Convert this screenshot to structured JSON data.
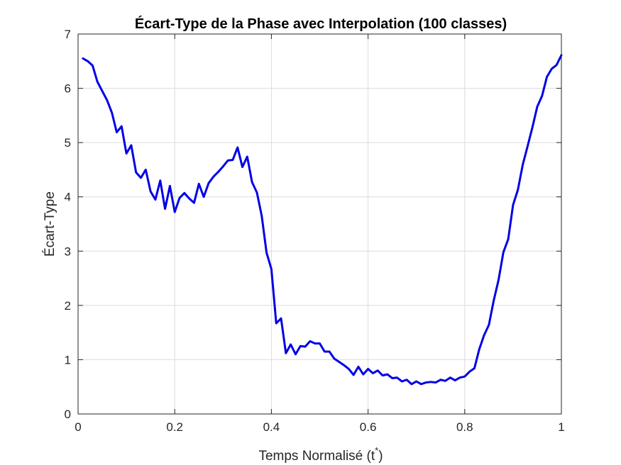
{
  "chart_data": {
    "type": "line",
    "title": "Écart-Type de la Phase avec Interpolation (100 classes)",
    "xlabel_main": "Temps Normalisé (t",
    "xlabel_sup": "*",
    "xlabel_end": ")",
    "ylabel": "Écart-Type",
    "xlim": [
      0,
      1
    ],
    "ylim": [
      0,
      7
    ],
    "xticks": [
      0,
      0.2,
      0.4,
      0.6,
      0.8,
      1
    ],
    "xtick_labels": [
      "0",
      "0.2",
      "0.4",
      "0.6",
      "0.8",
      "1"
    ],
    "yticks": [
      0,
      1,
      2,
      3,
      4,
      5,
      6,
      7
    ],
    "ytick_labels": [
      "0",
      "1",
      "2",
      "3",
      "4",
      "5",
      "6",
      "7"
    ],
    "grid": true,
    "line_color": "#0000e6",
    "series": [
      {
        "x": [
          0.01,
          0.02,
          0.03,
          0.04,
          0.05,
          0.06,
          0.07,
          0.08,
          0.09,
          0.1,
          0.11,
          0.12,
          0.13,
          0.14,
          0.15,
          0.16,
          0.17,
          0.18,
          0.19,
          0.2,
          0.21,
          0.22,
          0.23,
          0.24,
          0.25,
          0.26,
          0.27,
          0.28,
          0.29,
          0.3,
          0.31,
          0.32,
          0.33,
          0.34,
          0.35,
          0.36,
          0.37,
          0.38,
          0.39,
          0.4,
          0.41,
          0.42,
          0.43,
          0.44,
          0.45,
          0.46,
          0.47,
          0.48,
          0.49,
          0.5,
          0.51,
          0.52,
          0.53,
          0.54,
          0.55,
          0.56,
          0.57,
          0.58,
          0.59,
          0.6,
          0.61,
          0.62,
          0.63,
          0.64,
          0.65,
          0.66,
          0.67,
          0.68,
          0.69,
          0.7,
          0.71,
          0.72,
          0.73,
          0.74,
          0.75,
          0.76,
          0.77,
          0.78,
          0.79,
          0.8,
          0.81,
          0.82,
          0.83,
          0.84,
          0.85,
          0.86,
          0.87,
          0.88,
          0.89,
          0.9,
          0.91,
          0.92,
          0.93,
          0.94,
          0.95,
          0.96,
          0.97,
          0.98,
          0.99,
          1.0
        ],
        "y": [
          6.55,
          6.5,
          6.42,
          6.12,
          5.95,
          5.78,
          5.55,
          5.19,
          5.3,
          4.8,
          4.95,
          4.45,
          4.35,
          4.5,
          4.1,
          3.95,
          4.3,
          3.78,
          4.2,
          3.72,
          3.98,
          4.07,
          3.97,
          3.89,
          4.24,
          4.0,
          4.25,
          4.37,
          4.46,
          4.56,
          4.67,
          4.68,
          4.91,
          4.55,
          4.74,
          4.27,
          4.08,
          3.65,
          2.97,
          2.67,
          1.67,
          1.76,
          1.12,
          1.28,
          1.1,
          1.25,
          1.24,
          1.34,
          1.3,
          1.3,
          1.15,
          1.15,
          1.02,
          0.96,
          0.9,
          0.83,
          0.72,
          0.87,
          0.73,
          0.83,
          0.75,
          0.8,
          0.71,
          0.73,
          0.66,
          0.67,
          0.6,
          0.63,
          0.55,
          0.6,
          0.55,
          0.58,
          0.59,
          0.58,
          0.63,
          0.61,
          0.67,
          0.62,
          0.67,
          0.69,
          0.78,
          0.84,
          1.19,
          1.45,
          1.64,
          2.09,
          2.47,
          2.98,
          3.22,
          3.85,
          4.13,
          4.59,
          4.93,
          5.28,
          5.66,
          5.86,
          6.21,
          6.36,
          6.43,
          6.61
        ]
      }
    ]
  }
}
